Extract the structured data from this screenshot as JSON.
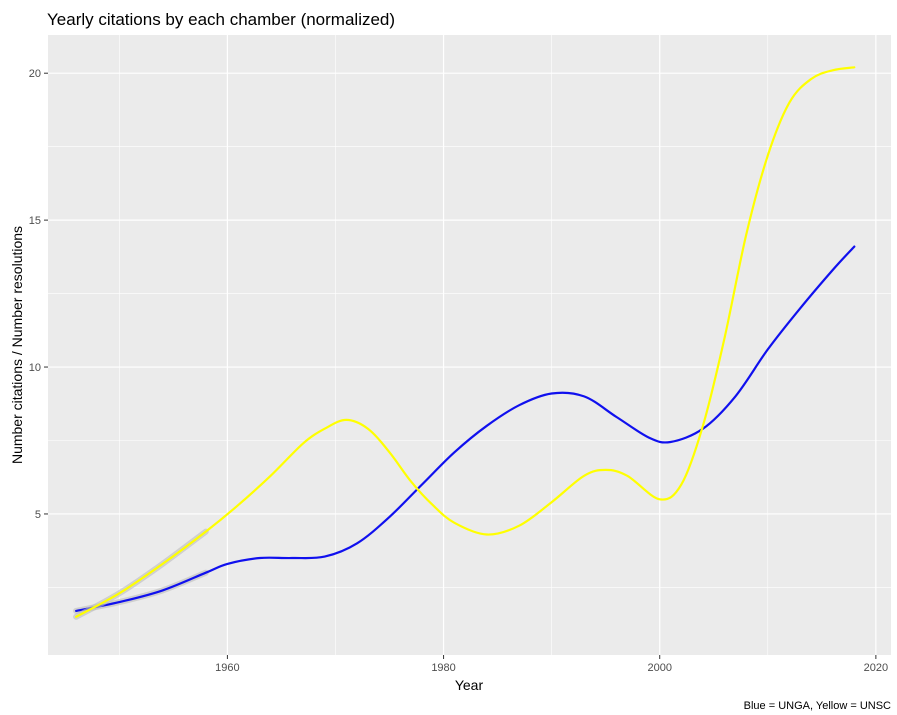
{
  "chart_data": {
    "type": "line",
    "title": "Yearly citations by each chamber (normalized)",
    "xlabel": "Year",
    "ylabel": "Number citations / Number resolutions",
    "caption": "Blue = UNGA, Yellow = UNSC",
    "xlim": [
      1943.4,
      2021.4
    ],
    "ylim": [
      0.2,
      21.3
    ],
    "x_ticks": [
      1960,
      1980,
      2000,
      2020
    ],
    "x_tick_labels": [
      "1960",
      "1980",
      "2000",
      "2020"
    ],
    "y_ticks": [
      5,
      10,
      15,
      20
    ],
    "y_tick_labels": [
      "5",
      "10",
      "15",
      "20"
    ],
    "grid": true,
    "background": "#ebebeb",
    "series": [
      {
        "color": "#1010ee",
        "x": [
          1946,
          1950,
          1954,
          1958,
          1960,
          1963,
          1966,
          1969,
          1972,
          1975,
          1978,
          1981,
          1984,
          1987,
          1990,
          1993,
          1996,
          1999,
          2001,
          2004,
          2007,
          2010,
          2013,
          2016,
          2018
        ],
        "y": [
          1.7,
          2.0,
          2.4,
          3.0,
          3.3,
          3.5,
          3.5,
          3.55,
          4.0,
          4.9,
          6.0,
          7.1,
          8.0,
          8.7,
          9.1,
          9.0,
          8.3,
          7.6,
          7.45,
          7.9,
          9.0,
          10.6,
          12.0,
          13.3,
          14.1
        ]
      },
      {
        "color": "#ffff00",
        "x": [
          1946,
          1950,
          1954,
          1958,
          1961,
          1964,
          1967,
          1969,
          1971,
          1973,
          1975,
          1977,
          1979,
          1981,
          1984,
          1987,
          1990,
          1993,
          1995,
          1997,
          2000,
          2002,
          2004,
          2006,
          2008,
          2010,
          2012,
          2014,
          2016,
          2018
        ],
        "y": [
          1.5,
          2.3,
          3.3,
          4.4,
          5.3,
          6.3,
          7.4,
          7.9,
          8.2,
          7.9,
          7.1,
          6.1,
          5.3,
          4.7,
          4.3,
          4.6,
          5.4,
          6.3,
          6.5,
          6.3,
          5.5,
          6.0,
          8.0,
          11.0,
          14.5,
          17.2,
          19.0,
          19.8,
          20.1,
          20.2
        ]
      }
    ]
  }
}
